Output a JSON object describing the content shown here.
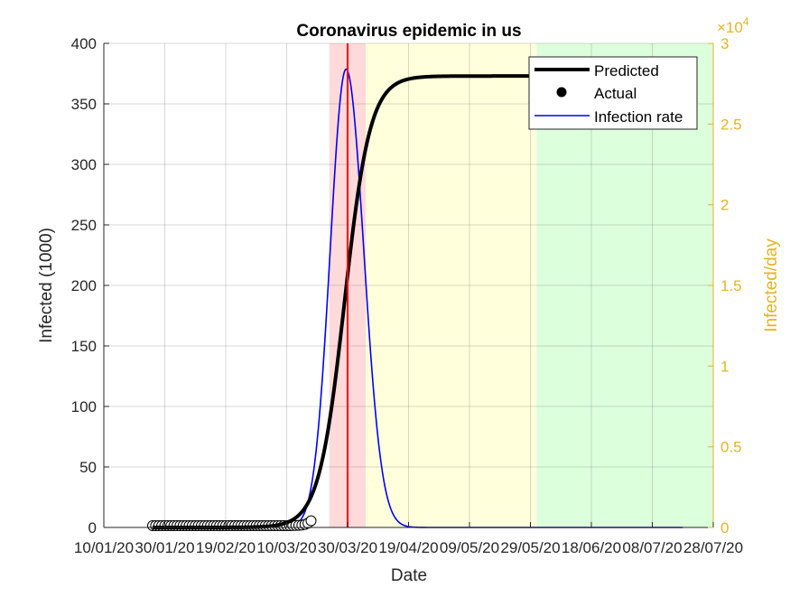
{
  "chart_data": {
    "type": "line",
    "title": "Coronavirus epidemic in us",
    "xlabel": "Date",
    "ylabel_left": "Infected (1000)",
    "ylabel_right": "Infected/day",
    "right_axis_multiplier": "×10",
    "right_axis_exponent": "4",
    "x_tick_labels": [
      "10/01/20",
      "30/01/20",
      "19/02/20",
      "10/03/20",
      "30/03/20",
      "19/04/20",
      "09/05/20",
      "29/05/20",
      "18/06/20",
      "08/07/20",
      "28/07/20"
    ],
    "xlim_days": [
      0,
      200
    ],
    "ylim_left": [
      0,
      400
    ],
    "yticks_left": [
      "0",
      "50",
      "100",
      "150",
      "200",
      "250",
      "300",
      "350",
      "400"
    ],
    "ylim_right": [
      0,
      3
    ],
    "yticks_right": [
      "0",
      "0.5",
      "1",
      "1.5",
      "2",
      "2.5",
      "3"
    ],
    "grid": true,
    "legend_position": "top-right",
    "legend": [
      "Predicted",
      "Actual",
      "Infection rate"
    ],
    "predicted_model": {
      "final_size": 373,
      "midpoint_day": 79,
      "scale_days": 4.2,
      "start_day": 16
    },
    "infection_rate_peak": {
      "peak_day": 79.5,
      "peak_value": 2.84,
      "sigma_left_days": 5.2,
      "sigma_right_days": 5.8,
      "end_day": 190
    },
    "actual_days": [
      16,
      17,
      18,
      19,
      20,
      21,
      22,
      23,
      24,
      25,
      26,
      27,
      28,
      29,
      30,
      31,
      32,
      33,
      34,
      35,
      36,
      37,
      38,
      39,
      40,
      41,
      42,
      43,
      44,
      45,
      46,
      47,
      48,
      49,
      50,
      51,
      52,
      53,
      54,
      55,
      56,
      57,
      58,
      59,
      60,
      61,
      62,
      63,
      64,
      65,
      66,
      67,
      68
    ],
    "actual_values": [
      1.5,
      1.5,
      1.5,
      1.5,
      1.5,
      1.5,
      1.5,
      1.5,
      1.5,
      1.5,
      1.5,
      1.5,
      1.5,
      1.5,
      1.5,
      1.5,
      1.5,
      1.5,
      1.5,
      1.5,
      1.5,
      1.5,
      1.5,
      1.5,
      1.5,
      1.5,
      1.5,
      1.5,
      1.5,
      1.5,
      1.5,
      1.5,
      1.5,
      1.5,
      1.5,
      1.5,
      1.5,
      1.5,
      1.5,
      1.5,
      1.5,
      1.5,
      1.5,
      1.5,
      1.5,
      1.5,
      1.6,
      1.7,
      1.8,
      2.0,
      2.5,
      3.5,
      5.5
    ],
    "shaded_regions": [
      {
        "from_day": 74,
        "to_day": 86,
        "color": "#ffdada"
      },
      {
        "from_day": 86,
        "to_day": 142,
        "color": "#ffffdc"
      },
      {
        "from_day": 142,
        "to_day": 200,
        "color": "#dcffdc"
      }
    ],
    "vertical_line_day": 80,
    "colors": {
      "predicted": "#000000",
      "infection_rate": "#0000ff",
      "vline": "#ff0000",
      "right_axis": "#e6b422"
    }
  }
}
